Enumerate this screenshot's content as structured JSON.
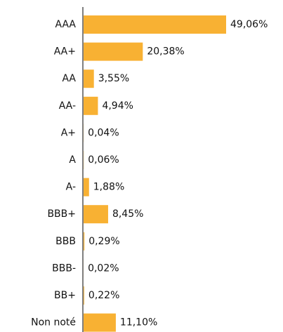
{
  "chart_data": {
    "type": "bar",
    "orientation": "horizontal",
    "categories": [
      "AAA",
      "AA+",
      "AA",
      "AA-",
      "A+",
      "A",
      "A-",
      "BBB+",
      "BBB",
      "BBB-",
      "BB+",
      "Non noté"
    ],
    "values": [
      49.06,
      20.38,
      3.55,
      4.94,
      0.04,
      0.06,
      1.88,
      8.45,
      0.29,
      0.02,
      0.22,
      11.1
    ],
    "value_labels": [
      "49,06%",
      "20,38%",
      "3,55%",
      "4,94%",
      "0,04%",
      "0,06%",
      "1,88%",
      "8,45%",
      "0,29%",
      "0,02%",
      "0,22%",
      "11,10%"
    ],
    "color": "#f8b133"
  }
}
